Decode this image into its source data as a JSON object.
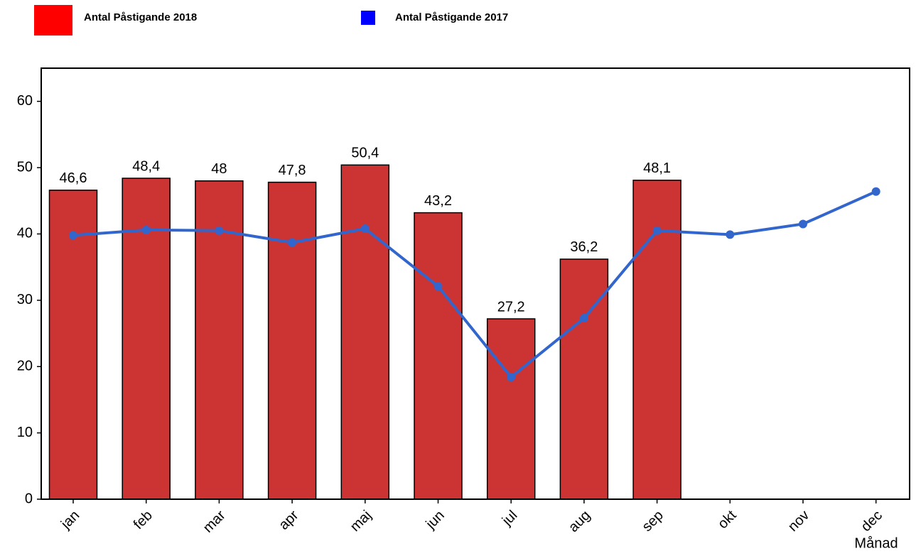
{
  "chart_data": {
    "type": "bar_line",
    "x_label": "Månad",
    "categories": [
      "jan",
      "feb",
      "mar",
      "apr",
      "maj",
      "jun",
      "jul",
      "aug",
      "sep",
      "okt",
      "nov",
      "dec"
    ],
    "series": [
      {
        "name": "Antal Påstigande 2018",
        "type": "bar",
        "color": "#cc3333",
        "legend_color": "#ff0000",
        "values": [
          46.6,
          48.4,
          48,
          47.8,
          50.4,
          43.2,
          27.2,
          36.2,
          48.1,
          null,
          null,
          null
        ],
        "value_labels": [
          "46,6",
          "48,4",
          "48",
          "47,8",
          "50,4",
          "43,2",
          "27,2",
          "36,2",
          "48,1",
          null,
          null,
          null
        ]
      },
      {
        "name": "Antal Påstigande 2017",
        "type": "line",
        "color": "#3366cc",
        "legend_color": "#0000ff",
        "values": [
          39.8,
          40.6,
          40.5,
          38.7,
          40.8,
          32.1,
          18.4,
          27.3,
          40.5,
          39.9,
          41.5,
          46.4
        ]
      }
    ],
    "ylim": [
      0,
      65
    ],
    "yticks": [
      0,
      10,
      20,
      30,
      40,
      50,
      60
    ],
    "grid": false
  }
}
